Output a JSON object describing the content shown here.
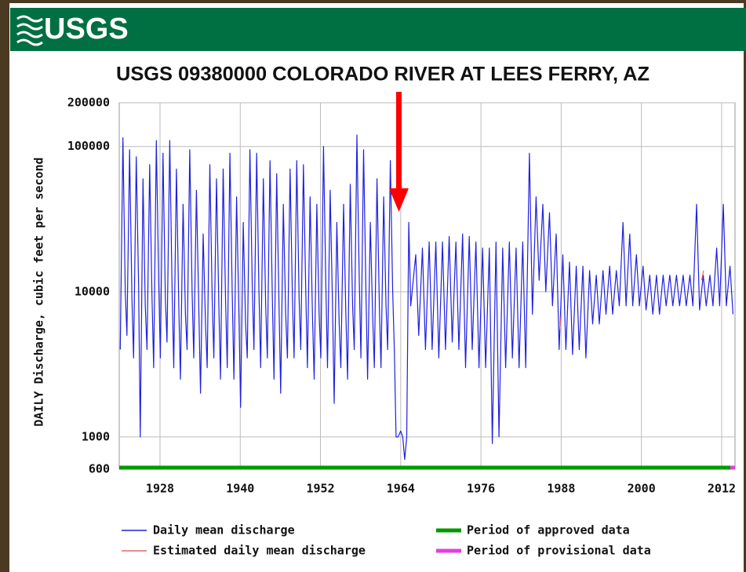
{
  "logo": "USGS",
  "chart_data": {
    "type": "line",
    "title": "USGS 09380000 COLORADO RIVER AT LEES FERRY, AZ",
    "ylabel": "DAILY Discharge, cubic feet per second",
    "log_y": true,
    "grid": true,
    "xlim": [
      1921.9,
      2014.0
    ],
    "ylim": [
      600,
      200000
    ],
    "xticks": [
      1928,
      1940,
      1952,
      1964,
      1976,
      1988,
      2000,
      2012
    ],
    "yticks": [
      600,
      1000,
      10000,
      100000,
      200000
    ],
    "series": [
      {
        "name": "Daily mean discharge",
        "color": "#1f1fe0",
        "x": [
          1922.05,
          1922.45,
          1922.8,
          1923.05,
          1923.45,
          1923.8,
          1924.05,
          1924.45,
          1924.8,
          1925.05,
          1925.45,
          1925.8,
          1926.05,
          1926.45,
          1926.8,
          1927.05,
          1927.45,
          1927.8,
          1928.05,
          1928.45,
          1928.8,
          1929.05,
          1929.45,
          1929.8,
          1930.05,
          1930.45,
          1930.8,
          1931.05,
          1931.45,
          1931.8,
          1932.05,
          1932.45,
          1932.8,
          1933.05,
          1933.45,
          1933.8,
          1934.05,
          1934.45,
          1934.8,
          1935.05,
          1935.45,
          1935.8,
          1936.05,
          1936.45,
          1936.8,
          1937.05,
          1937.45,
          1937.8,
          1938.05,
          1938.45,
          1938.8,
          1939.05,
          1939.45,
          1939.8,
          1940.05,
          1940.45,
          1940.8,
          1941.05,
          1941.45,
          1941.8,
          1942.05,
          1942.45,
          1942.8,
          1943.05,
          1943.45,
          1943.8,
          1944.05,
          1944.45,
          1944.8,
          1945.05,
          1945.45,
          1945.8,
          1946.05,
          1946.45,
          1946.8,
          1947.05,
          1947.45,
          1947.8,
          1948.05,
          1948.45,
          1948.8,
          1949.05,
          1949.45,
          1949.8,
          1950.05,
          1950.45,
          1950.8,
          1951.05,
          1951.45,
          1951.8,
          1952.05,
          1952.45,
          1952.8,
          1953.05,
          1953.45,
          1953.8,
          1954.05,
          1954.45,
          1954.8,
          1955.05,
          1955.45,
          1955.8,
          1956.05,
          1956.45,
          1956.8,
          1957.05,
          1957.45,
          1957.8,
          1958.05,
          1958.45,
          1958.8,
          1959.05,
          1959.45,
          1959.8,
          1960.05,
          1960.45,
          1960.8,
          1961.05,
          1961.45,
          1961.8,
          1962.05,
          1962.45,
          1962.8,
          1963.05,
          1963.3,
          1963.6,
          1964.0,
          1964.3,
          1964.6,
          1964.9,
          1965.2,
          1965.5,
          1966.25,
          1966.7,
          1967.25,
          1967.7,
          1968.25,
          1968.7,
          1969.25,
          1969.7,
          1970.25,
          1970.7,
          1971.25,
          1971.7,
          1972.25,
          1972.7,
          1973.25,
          1973.7,
          1974.25,
          1974.7,
          1975.25,
          1975.7,
          1976.25,
          1976.7,
          1977.25,
          1977.7,
          1978.25,
          1978.7,
          1979.25,
          1979.7,
          1980.25,
          1980.7,
          1981.25,
          1981.7,
          1982.25,
          1982.7,
          1983.25,
          1983.7,
          1984.25,
          1984.7,
          1985.25,
          1985.7,
          1986.25,
          1986.7,
          1987.25,
          1987.7,
          1988.25,
          1988.7,
          1989.25,
          1989.7,
          1990.25,
          1990.7,
          1991.25,
          1991.7,
          1992.25,
          1992.7,
          1993.25,
          1993.7,
          1994.25,
          1994.7,
          1995.25,
          1995.7,
          1996.25,
          1996.7,
          1997.25,
          1997.7,
          1998.25,
          1998.7,
          1999.25,
          1999.7,
          2000.25,
          2000.7,
          2001.25,
          2001.7,
          2002.25,
          2002.7,
          2003.25,
          2003.7,
          2004.25,
          2004.7,
          2005.25,
          2005.7,
          2006.25,
          2006.7,
          2007.25,
          2007.7,
          2008.25,
          2008.7,
          2009.25,
          2009.7,
          2010.25,
          2010.7,
          2011.25,
          2011.7,
          2012.25,
          2012.7,
          2013.25,
          2013.7
        ],
        "values": [
          4000,
          115000,
          10000,
          5000,
          95000,
          9000,
          3500,
          85000,
          11000,
          1000,
          60000,
          8000,
          4000,
          75000,
          9000,
          3000,
          110000,
          12000,
          3500,
          90000,
          9000,
          4500,
          110000,
          11000,
          3000,
          70000,
          8000,
          2500,
          40000,
          7000,
          4000,
          95000,
          10000,
          3500,
          50000,
          8000,
          2000,
          25000,
          6000,
          3000,
          75000,
          9000,
          3500,
          60000,
          8000,
          2500,
          70000,
          9000,
          3000,
          90000,
          10000,
          2500,
          45000,
          7000,
          1600,
          30000,
          6000,
          3500,
          95000,
          11000,
          4000,
          90000,
          10000,
          3000,
          60000,
          8000,
          3500,
          80000,
          9000,
          2500,
          65000,
          8000,
          2000,
          40000,
          7000,
          3500,
          70000,
          9000,
          3500,
          80000,
          9000,
          4000,
          75000,
          10000,
          3000,
          45000,
          7000,
          2500,
          40000,
          7000,
          3500,
          100000,
          11000,
          3000,
          50000,
          8000,
          1700,
          30000,
          6000,
          3000,
          40000,
          7000,
          2500,
          55000,
          8000,
          4000,
          120000,
          12000,
          3500,
          95000,
          10000,
          2500,
          30000,
          7000,
          3000,
          60000,
          8000,
          3000,
          45000,
          8000,
          4000,
          80000,
          10000,
          4000,
          1000,
          1000,
          1100,
          1000,
          700,
          1000,
          30000,
          8000,
          18000,
          5000,
          20000,
          4000,
          22000,
          4000,
          22000,
          3500,
          22000,
          4000,
          24000,
          4500,
          22000,
          4000,
          25000,
          3000,
          24000,
          4000,
          22000,
          3000,
          20000,
          3000,
          20000,
          900,
          22000,
          1000,
          20000,
          3000,
          22000,
          3500,
          20000,
          3000,
          22000,
          3000,
          90000,
          7000,
          45000,
          12000,
          40000,
          10000,
          35000,
          8000,
          25000,
          4000,
          18000,
          4000,
          16000,
          3700,
          15000,
          4000,
          15000,
          3500,
          14000,
          6000,
          13000,
          6000,
          14000,
          7000,
          15000,
          7000,
          14000,
          8000,
          30000,
          8000,
          25000,
          8000,
          18000,
          8000,
          15000,
          7500,
          13000,
          7000,
          13000,
          7000,
          13000,
          8000,
          13000,
          8000,
          13000,
          8000,
          13000,
          8000,
          13000,
          8000,
          40000,
          7500,
          13000,
          8000,
          13000,
          8000,
          20000,
          8000,
          40000,
          8000,
          15000,
          7000
        ]
      },
      {
        "name": "Estimated daily mean discharge",
        "color": "#e06a6a",
        "x": [
          1987.8,
          1988.0,
          1988.1,
          2009.0,
          2009.3
        ],
        "values": [
          5500,
          7000,
          null,
          12000,
          14000
        ]
      }
    ],
    "periods": [
      {
        "name": "Period of approved data",
        "color": "#009a00",
        "start": 1921.9,
        "end": 2013.3
      },
      {
        "name": "Period of provisional data",
        "color": "#e040e0",
        "start": 2013.3,
        "end": 2014.0
      }
    ]
  }
}
